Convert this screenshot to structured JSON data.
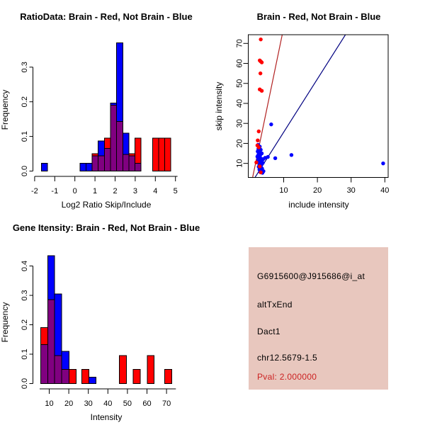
{
  "colors": {
    "red": "#FF0000",
    "blue": "#0000FF",
    "overlap": "#800080",
    "red_line": "#B22222",
    "blue_line": "#000080",
    "axis": "#000000",
    "info_bg": "#E8C7BE",
    "pval_text": "#CC2222",
    "page_bg": "#FFFFFF"
  },
  "chart_data": [
    {
      "type": "bar",
      "subtype": "overlaid_histogram",
      "title": "RatioData: Brain - Red, Not Brain - Blue",
      "xlabel": "Log2 Ratio Skip/Include",
      "ylabel": "Frequency",
      "legend_note": "Brain = red, Not Brain = blue, overlap = purple",
      "xticks": [
        -2,
        -1,
        0,
        1,
        2,
        3,
        4,
        5
      ],
      "yticks": [
        0,
        0.1,
        0.2,
        0.3
      ],
      "xlim": [
        -2.28,
        5.28
      ],
      "ylim": [
        0,
        0.385
      ],
      "grid": false,
      "bars": [
        {
          "x0": -1.67,
          "x1": -1.36,
          "red": 0,
          "blue": 0.022
        },
        {
          "x0": 0.25,
          "x1": 0.55,
          "red": 0,
          "blue": 0.022
        },
        {
          "x0": 0.55,
          "x1": 0.86,
          "red": 0,
          "blue": 0.022
        },
        {
          "x0": 0.86,
          "x1": 1.16,
          "red": 0.05,
          "blue": 0.044
        },
        {
          "x0": 1.16,
          "x1": 1.47,
          "red": 0.044,
          "blue": 0.087
        },
        {
          "x0": 1.47,
          "x1": 1.77,
          "red": 0.095,
          "blue": 0.065
        },
        {
          "x0": 1.77,
          "x1": 2.07,
          "red": 0.19,
          "blue": 0.196
        },
        {
          "x0": 2.07,
          "x1": 2.38,
          "red": 0.143,
          "blue": 0.37
        },
        {
          "x0": 2.38,
          "x1": 2.68,
          "red": 0.048,
          "blue": 0.109
        },
        {
          "x0": 2.68,
          "x1": 2.99,
          "red": 0.05,
          "blue": 0.044
        },
        {
          "x0": 2.99,
          "x1": 3.29,
          "red": 0.095,
          "blue": 0.022
        },
        {
          "x0": 3.86,
          "x1": 4.16,
          "red": 0.095,
          "blue": 0
        },
        {
          "x0": 4.16,
          "x1": 4.47,
          "red": 0.095,
          "blue": 0
        },
        {
          "x0": 4.47,
          "x1": 4.77,
          "red": 0.095,
          "blue": 0
        }
      ]
    },
    {
      "type": "scatter",
      "title": "Brain - Red, Not Brain - Blue",
      "xlabel": "include intensity",
      "ylabel": "skip intensity",
      "xticks": [
        10,
        20,
        30,
        40
      ],
      "yticks": [
        10,
        20,
        30,
        40,
        50,
        60,
        70
      ],
      "xlim": [
        -0.5,
        41.0
      ],
      "ylim": [
        3.0,
        74.3
      ],
      "grid": false,
      "red_points": [
        [
          3.2,
          72
        ],
        [
          2.9,
          61.5
        ],
        [
          3.2,
          61
        ],
        [
          3.5,
          60.5
        ],
        [
          3.1,
          55
        ],
        [
          2.9,
          47
        ],
        [
          3.5,
          46.3
        ],
        [
          2.6,
          26
        ],
        [
          2.3,
          21.5
        ],
        [
          2.2,
          19
        ],
        [
          2.6,
          18
        ],
        [
          1.9,
          10.5
        ],
        [
          2.9,
          8.5
        ],
        [
          3.2,
          5.5
        ]
      ],
      "blue_points": [
        [
          6.3,
          29.5
        ],
        [
          39.5,
          10
        ],
        [
          12.3,
          14.2
        ],
        [
          7.5,
          12.6
        ],
        [
          5.3,
          13.2
        ],
        [
          4.5,
          12.8
        ],
        [
          2.4,
          19.3
        ],
        [
          2.9,
          18.4
        ],
        [
          2.5,
          17.2
        ],
        [
          3.2,
          16.8
        ],
        [
          2.3,
          16
        ],
        [
          2.9,
          15.4
        ],
        [
          3.5,
          15
        ],
        [
          2.5,
          14.4
        ],
        [
          3.0,
          14
        ],
        [
          2.2,
          13.4
        ],
        [
          2.8,
          12.9
        ],
        [
          3.3,
          12.4
        ],
        [
          3.9,
          12.1
        ],
        [
          2.4,
          11.8
        ],
        [
          3.0,
          11.3
        ],
        [
          3.5,
          10.9
        ],
        [
          2.6,
          10.4
        ],
        [
          3.1,
          10
        ],
        [
          3.8,
          10.2
        ],
        [
          2.8,
          9.4
        ],
        [
          3.3,
          8.9
        ],
        [
          2.6,
          8.3
        ],
        [
          3.1,
          7.9
        ],
        [
          3.6,
          7.4
        ],
        [
          2.8,
          6.9
        ],
        [
          3.3,
          6.4
        ],
        [
          4.0,
          6.1
        ],
        [
          3.1,
          5.6
        ],
        [
          3.7,
          5.3
        ]
      ],
      "red_line": {
        "x1": 0.79,
        "y1": 3.0,
        "x2": 9.56,
        "y2": 74.3
      },
      "blue_line": {
        "x1": 1.5,
        "y1": 3.0,
        "x2": 28.3,
        "y2": 74.3
      }
    },
    {
      "type": "bar",
      "subtype": "overlaid_histogram",
      "title": "Gene Itensity: Brain - Red, Not Brain - Blue",
      "xlabel": "Intensity",
      "ylabel": "Frequency",
      "legend_note": "Brain = red, Not Brain = blue, overlap = purple",
      "xticks": [
        10,
        20,
        30,
        40,
        50,
        60,
        70
      ],
      "yticks": [
        0,
        0.1,
        0.2,
        0.3,
        0.4
      ],
      "xlim": [
        2.6,
        74.7
      ],
      "ylim": [
        0,
        0.452
      ],
      "grid": false,
      "bars": [
        {
          "x0": 5.6,
          "x1": 9.2,
          "red": 0.19,
          "blue": 0.133
        },
        {
          "x0": 9.2,
          "x1": 12.8,
          "red": 0.285,
          "blue": 0.435
        },
        {
          "x0": 12.8,
          "x1": 16.4,
          "red": 0.095,
          "blue": 0.305
        },
        {
          "x0": 16.4,
          "x1": 20.1,
          "red": 0.048,
          "blue": 0.11
        },
        {
          "x0": 20.1,
          "x1": 23.7,
          "red": 0.048,
          "blue": 0
        },
        {
          "x0": 26.7,
          "x1": 30.3,
          "red": 0.048,
          "blue": 0
        },
        {
          "x0": 30.3,
          "x1": 34.0,
          "red": 0,
          "blue": 0.022
        },
        {
          "x0": 45.9,
          "x1": 49.5,
          "red": 0.095,
          "blue": 0
        },
        {
          "x0": 52.9,
          "x1": 56.5,
          "red": 0.048,
          "blue": 0
        },
        {
          "x0": 60.1,
          "x1": 63.7,
          "red": 0.095,
          "blue": 0
        },
        {
          "x0": 69.0,
          "x1": 72.6,
          "red": 0.048,
          "blue": 0
        }
      ]
    }
  ],
  "info": {
    "probe": "G6915600@J915686@i_at",
    "event_type": "altTxEnd",
    "gene": "Dact1",
    "location": "chr12.5679-1.5",
    "pval": "Pval: 2.000000"
  }
}
